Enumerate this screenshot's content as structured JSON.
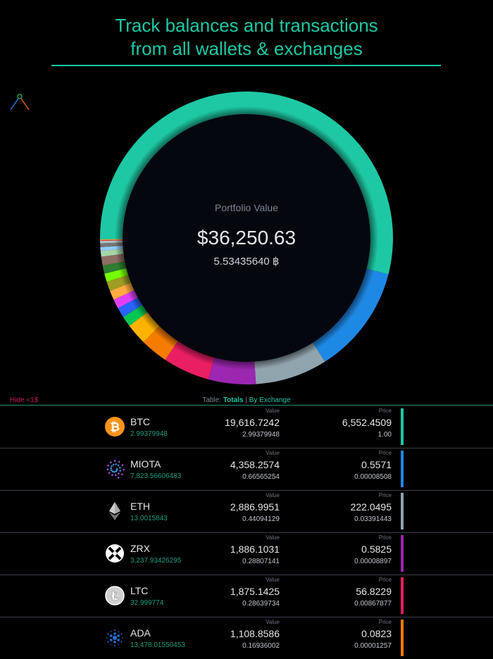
{
  "headline": {
    "line1": "Track  balances and transactions",
    "line2": "from all wallets & exchanges"
  },
  "portfolio": {
    "label": "Portfolio Value",
    "usd": "$36,250.63",
    "btc": "5.53435640 ฿"
  },
  "controls": {
    "hide_small": "Hide <1$",
    "table_label": "Table:",
    "tab_totals": "Totals",
    "separator": "|",
    "tab_by_exchange": "By Exchange"
  },
  "columns": {
    "value": "Value",
    "price": "Price"
  },
  "assets": [
    {
      "symbol": "BTC",
      "amount": "2.99379948",
      "value_usd": "19,616.7242",
      "value_btc": "2.99379948",
      "price_usd": "6,552.4509",
      "price_btc": "1.00",
      "color": "#1ec8a5",
      "icon": "bitcoin-icon",
      "value": 19616.7242
    },
    {
      "symbol": "MIOTA",
      "amount": "7,823.56606483",
      "value_usd": "4,358.2574",
      "value_btc": "0.66565254",
      "price_usd": "0.5571",
      "price_btc": "0.00008508",
      "color": "#1e88e5",
      "icon": "iota-icon",
      "value": 4358.2574
    },
    {
      "symbol": "ETH",
      "amount": "13.0015843",
      "value_usd": "2,886.9951",
      "value_btc": "0.44094129",
      "price_usd": "222.0495",
      "price_btc": "0.03391443",
      "color": "#90a4ae",
      "icon": "ethereum-icon",
      "value": 2886.9951
    },
    {
      "symbol": "ZRX",
      "amount": "3,237.93426295",
      "value_usd": "1,886.1031",
      "value_btc": "0.28807141",
      "price_usd": "0.5825",
      "price_btc": "0.00008897",
      "color": "#9c27b0",
      "icon": "zrx-icon",
      "value": 1886.1031
    },
    {
      "symbol": "LTC",
      "amount": "32.999774",
      "value_usd": "1,875.1425",
      "value_btc": "0.28639734",
      "price_usd": "56.8229",
      "price_btc": "0.00867877",
      "color": "#e91e63",
      "icon": "litecoin-icon",
      "value": 1875.1425
    },
    {
      "symbol": "ADA",
      "amount": "13,478.01550453",
      "value_usd": "1,108.8586",
      "value_btc": "0.16936002",
      "price_usd": "0.0823",
      "price_btc": "0.00001257",
      "color": "#f57c00",
      "icon": "cardano-icon",
      "value": 1108.8586
    }
  ],
  "other_slices": [
    {
      "color": "#ffb300",
      "value": 850
    },
    {
      "color": "#00c853",
      "value": 420
    },
    {
      "color": "#2962ff",
      "value": 400
    },
    {
      "color": "#e040fb",
      "value": 380
    },
    {
      "color": "#ffab40",
      "value": 380
    },
    {
      "color": "#9e9d24",
      "value": 380
    },
    {
      "color": "#76ff03",
      "value": 330
    },
    {
      "color": "#2e7d32",
      "value": 330
    },
    {
      "color": "#8d6e63",
      "value": 350
    },
    {
      "color": "#a5d6a7",
      "value": 230
    },
    {
      "color": "#90caf9",
      "value": 150
    },
    {
      "color": "#757575",
      "value": 150
    },
    {
      "color": "#b0bec5",
      "value": 100
    },
    {
      "color": "#e53935",
      "value": 30
    },
    {
      "color": "#ffd54f",
      "value": 30
    }
  ],
  "total_value": 36250.63,
  "accent": "#1ec8a5"
}
